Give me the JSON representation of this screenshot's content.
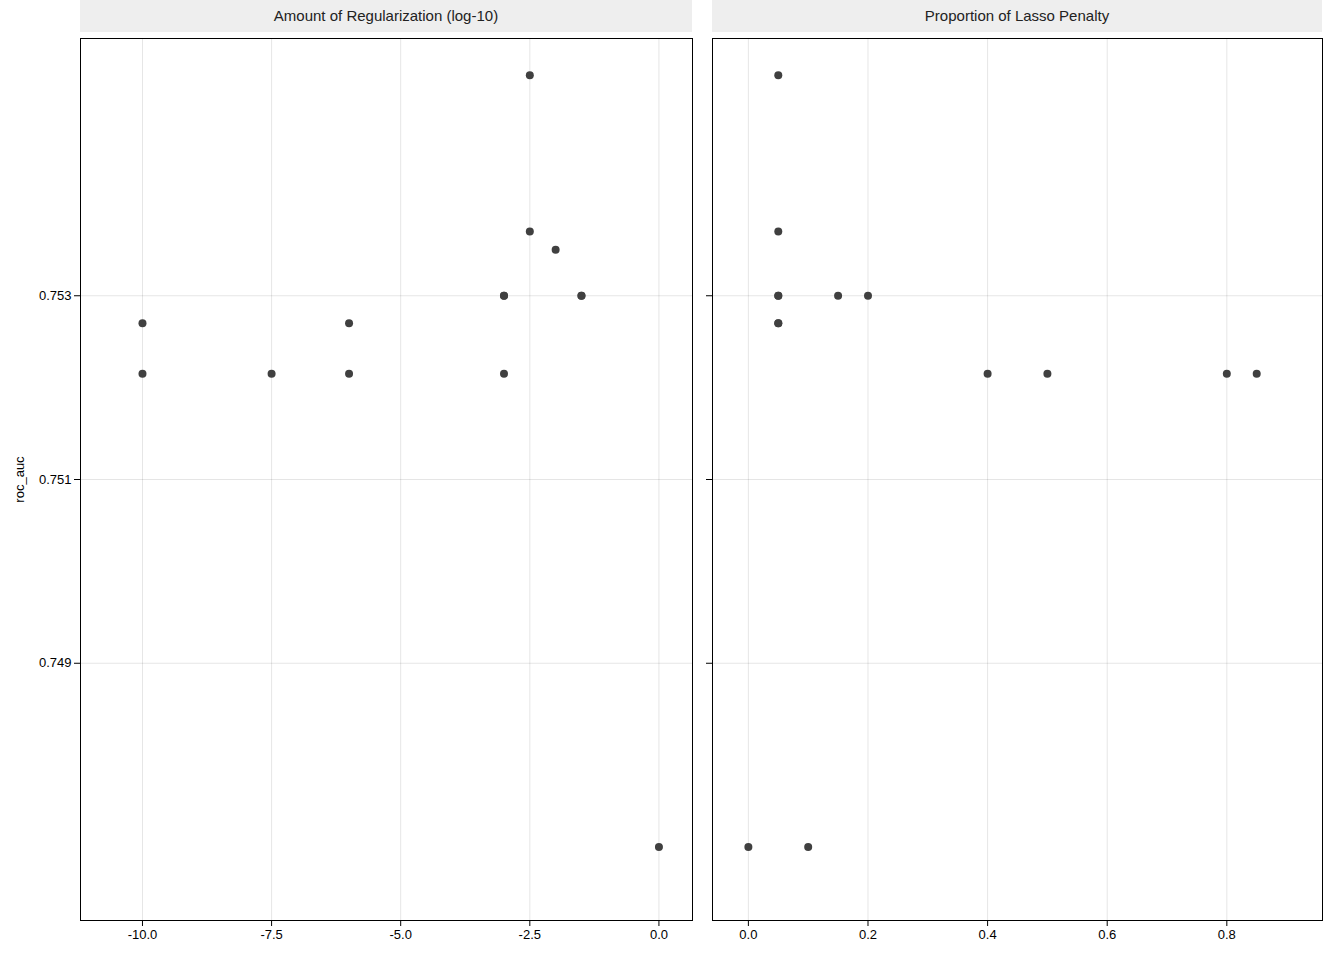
{
  "chart_data": [
    {
      "type": "scatter",
      "title": "Amount of Regularization (log-10)",
      "ylabel": "roc_auc",
      "x": [
        -10.0,
        -10.0,
        -7.5,
        -6.0,
        -6.0,
        -3.0,
        -3.0,
        -3.0,
        -2.5,
        -2.5,
        -2.0,
        -1.5,
        -1.5,
        0.0
      ],
      "values": [
        0.7527,
        0.75215,
        0.75215,
        0.7527,
        0.75215,
        0.753,
        0.753,
        0.75215,
        0.7554,
        0.7537,
        0.7535,
        0.753,
        0.753,
        0.747
      ],
      "color": "#404040",
      "xlim": [
        -11.2,
        0.65
      ],
      "xticks": [
        {
          "value": -10.0,
          "label": "-10.0"
        },
        -7.5,
        {
          "value": -5.0,
          "label": "-5.0"
        },
        -2.5,
        {
          "value": 0.0,
          "label": "0.0"
        }
      ],
      "ylim": [
        0.7462,
        0.7558
      ],
      "yticks": [
        0.749,
        0.751,
        0.753
      ],
      "grid": true
    },
    {
      "type": "scatter",
      "title": "Proportion of Lasso Penalty",
      "x": [
        0.05,
        0.05,
        0.05,
        0.05,
        0.05,
        0.05,
        0.15,
        0.2,
        0.4,
        0.5,
        0.8,
        0.85,
        0.0,
        0.1
      ],
      "values": [
        0.7554,
        0.7537,
        0.753,
        0.753,
        0.7527,
        0.7527,
        0.753,
        0.753,
        0.75215,
        0.75215,
        0.75215,
        0.75215,
        0.747,
        0.747
      ],
      "color": "#404040",
      "xlim": [
        -0.06,
        0.96
      ],
      "xticks": [
        {
          "value": 0.0,
          "label": "0.0"
        },
        0.2,
        0.4,
        0.6,
        0.8
      ],
      "ylim": [
        0.7462,
        0.7558
      ],
      "yticks": [
        0.749,
        0.751,
        0.753
      ],
      "grid": true,
      "tick_labels": "x"
    }
  ]
}
